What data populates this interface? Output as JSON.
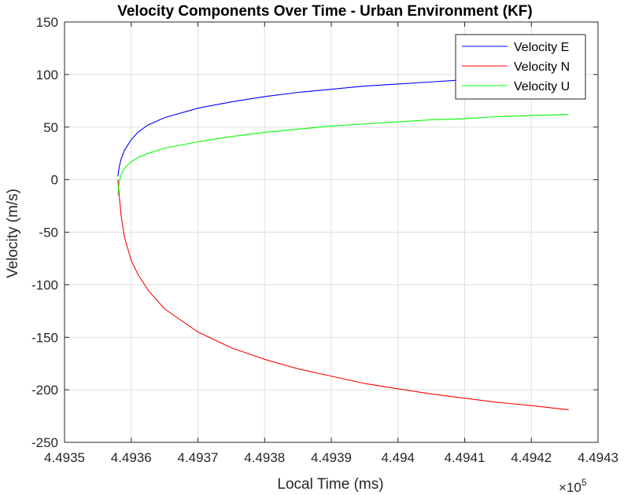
{
  "chart_data": {
    "type": "line",
    "title": "Velocity Components Over Time - Urban Environment (KF)",
    "xlabel": "Local Time (ms)",
    "ylabel": "Velocity (m/s)",
    "x_exponent_label": "×10",
    "x_exponent_power": "5",
    "x_scale_factor": 100000,
    "xlim": [
      449350,
      449430
    ],
    "ylim": [
      -250,
      150
    ],
    "x_tick_values": [
      4.4935,
      4.4936,
      4.4937,
      4.4938,
      4.4939,
      4.494,
      4.4941,
      4.4942,
      4.4943
    ],
    "x_tick_labels": [
      "4.4935",
      "4.4936",
      "4.4937",
      "4.4938",
      "4.4939",
      "4.494",
      "4.4941",
      "4.4942",
      "4.4943"
    ],
    "y_tick_values": [
      150,
      100,
      50,
      0,
      -50,
      -100,
      -150,
      -200,
      -250
    ],
    "y_tick_labels": [
      "150",
      "100",
      "50",
      "0",
      "-50",
      "-100",
      "-150",
      "-200",
      "-250"
    ],
    "grid": true,
    "legend_position": "top-right",
    "series": [
      {
        "name": "Velocity E",
        "color": "#0000ff",
        "x": [
          449358.0,
          449358.2,
          449358.5,
          449359.0,
          449360.0,
          449361.0,
          449362.5,
          449365.0,
          449370.0,
          449375.0,
          449380.0,
          449385.0,
          449390.0,
          449395.0,
          449400.0,
          449405.0,
          449410.0,
          449415.0
        ],
        "y": [
          3,
          12,
          20,
          28,
          38,
          45,
          52,
          59,
          68,
          74,
          79,
          83,
          86,
          89,
          91,
          93,
          95,
          96
        ]
      },
      {
        "name": "Velocity N",
        "color": "#ff0000",
        "x": [
          449358.0,
          449358.2,
          449358.5,
          449359.0,
          449360.0,
          449361.0,
          449362.5,
          449365.0,
          449370.0,
          449375.0,
          449380.0,
          449385.0,
          449390.0,
          449395.0,
          449400.0,
          449405.0,
          449410.0,
          449415.0,
          449420.0,
          449425.6
        ],
        "y": [
          0,
          -15,
          -35,
          -55,
          -77,
          -90,
          -105,
          -123,
          -145,
          -160,
          -171,
          -180,
          -187,
          -194,
          -199,
          -204,
          -208,
          -212,
          -215,
          -219
        ]
      },
      {
        "name": "Velocity U",
        "color": "#00ff00",
        "x": [
          449358.0,
          449358.2,
          449358.5,
          449359.0,
          449360.0,
          449361.0,
          449362.5,
          449365.0,
          449370.0,
          449375.0,
          449380.0,
          449385.0,
          449390.0,
          449395.0,
          449400.0,
          449405.0,
          449410.0,
          449415.0,
          449420.0,
          449425.6
        ],
        "y": [
          -15,
          -2,
          5,
          11,
          17,
          21,
          25,
          30,
          36,
          41,
          45,
          48,
          51,
          53,
          55,
          57,
          58,
          60,
          61,
          62
        ]
      }
    ]
  }
}
